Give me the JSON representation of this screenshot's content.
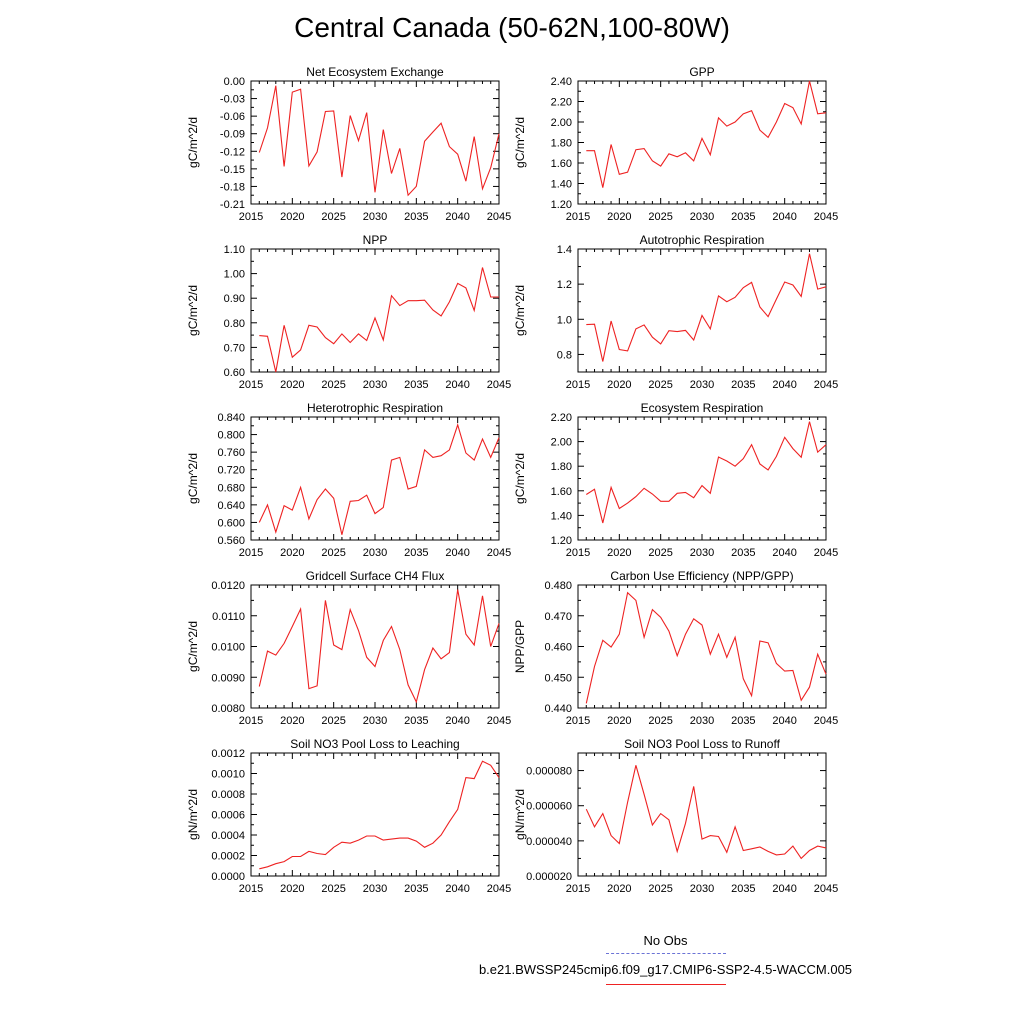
{
  "title": "Central Canada (50-62N,100-80W)",
  "legend": {
    "obs_label": "No Obs",
    "run_label": "b.e21.BWSSP245cmip6.f09_g17.CMIP6-SSP2-4.5-WACCM.005",
    "obs_color": "#6b73d6",
    "run_color": "#ee2222"
  },
  "chart_data": [
    {
      "type": "line",
      "title": "Net Ecosystem Exchange",
      "ylabel": "gC/m^2/d",
      "xlim": [
        2015,
        2045
      ],
      "ylim": [
        -0.21,
        0.0
      ],
      "xticks": [
        "2015",
        "2020",
        "2025",
        "2030",
        "2035",
        "2040",
        "2045"
      ],
      "yticks": [
        "0.00",
        "-0.03",
        "-0.06",
        "-0.09",
        "-0.12",
        "-0.15",
        "-0.18",
        "-0.21"
      ],
      "x": [
        2016,
        2017,
        2018,
        2019,
        2020,
        2021,
        2022,
        2023,
        2024,
        2025,
        2026,
        2027,
        2028,
        2029,
        2030,
        2031,
        2032,
        2033,
        2034,
        2035,
        2036,
        2037,
        2038,
        2039,
        2040,
        2041,
        2042,
        2043,
        2044,
        2045
      ],
      "series": [
        {
          "values": [
            -0.122,
            -0.08,
            -0.008,
            -0.146,
            -0.019,
            -0.014,
            -0.145,
            -0.121,
            -0.052,
            -0.051,
            -0.164,
            -0.059,
            -0.102,
            -0.054,
            -0.19,
            -0.083,
            -0.158,
            -0.115,
            -0.195,
            -0.18,
            -0.103,
            -0.087,
            -0.072,
            -0.112,
            -0.125,
            -0.171,
            -0.095,
            -0.184,
            -0.148,
            -0.09
          ]
        }
      ]
    },
    {
      "type": "line",
      "title": "GPP",
      "ylabel": "gC/m^2/d",
      "xlim": [
        2015,
        2045
      ],
      "ylim": [
        1.2,
        2.4
      ],
      "xticks": [
        "2015",
        "2020",
        "2025",
        "2030",
        "2035",
        "2040",
        "2045"
      ],
      "yticks": [
        "1.20",
        "1.40",
        "1.60",
        "1.80",
        "2.00",
        "2.20",
        "2.40"
      ],
      "x": [
        2016,
        2017,
        2018,
        2019,
        2020,
        2021,
        2022,
        2023,
        2024,
        2025,
        2026,
        2027,
        2028,
        2029,
        2030,
        2031,
        2032,
        2033,
        2034,
        2035,
        2036,
        2037,
        2038,
        2039,
        2040,
        2041,
        2042,
        2043,
        2044,
        2045
      ],
      "series": [
        {
          "values": [
            1.72,
            1.72,
            1.36,
            1.78,
            1.49,
            1.51,
            1.73,
            1.74,
            1.62,
            1.57,
            1.69,
            1.66,
            1.7,
            1.62,
            1.84,
            1.68,
            2.04,
            1.96,
            2.0,
            2.08,
            2.11,
            1.92,
            1.85,
            2.0,
            2.18,
            2.14,
            1.98,
            2.4,
            2.08,
            2.09
          ]
        }
      ]
    },
    {
      "type": "line",
      "title": "NPP",
      "ylabel": "gC/m^2/d",
      "xlim": [
        2015,
        2045
      ],
      "ylim": [
        0.6,
        1.1
      ],
      "xticks": [
        "2015",
        "2020",
        "2025",
        "2030",
        "2035",
        "2040",
        "2045"
      ],
      "yticks": [
        "0.60",
        "0.70",
        "0.80",
        "0.90",
        "1.00",
        "1.10"
      ],
      "x": [
        2016,
        2017,
        2018,
        2019,
        2020,
        2021,
        2022,
        2023,
        2024,
        2025,
        2026,
        2027,
        2028,
        2029,
        2030,
        2031,
        2032,
        2033,
        2034,
        2035,
        2036,
        2037,
        2038,
        2039,
        2040,
        2041,
        2042,
        2043,
        2044,
        2045
      ],
      "series": [
        {
          "values": [
            0.748,
            0.745,
            0.6,
            0.79,
            0.66,
            0.69,
            0.79,
            0.783,
            0.74,
            0.715,
            0.755,
            0.72,
            0.755,
            0.728,
            0.82,
            0.73,
            0.91,
            0.87,
            0.89,
            0.89,
            0.892,
            0.852,
            0.828,
            0.885,
            0.96,
            0.942,
            0.85,
            1.025,
            0.905,
            0.905
          ]
        }
      ]
    },
    {
      "type": "line",
      "title": "Autotrophic Respiration",
      "ylabel": "gC/m^2/d",
      "xlim": [
        2015,
        2045
      ],
      "ylim": [
        0.7,
        1.4
      ],
      "xticks": [
        "2015",
        "2020",
        "2025",
        "2030",
        "2035",
        "2040",
        "2045"
      ],
      "yticks": [
        "0.8",
        "1.0",
        "1.2",
        "1.4"
      ],
      "x": [
        2016,
        2017,
        2018,
        2019,
        2020,
        2021,
        2022,
        2023,
        2024,
        2025,
        2026,
        2027,
        2028,
        2029,
        2030,
        2031,
        2032,
        2033,
        2034,
        2035,
        2036,
        2037,
        2038,
        2039,
        2040,
        2041,
        2042,
        2043,
        2044,
        2045
      ],
      "series": [
        {
          "values": [
            0.97,
            0.972,
            0.76,
            0.99,
            0.828,
            0.82,
            0.945,
            0.968,
            0.898,
            0.86,
            0.935,
            0.93,
            0.937,
            0.882,
            1.022,
            0.945,
            1.133,
            1.1,
            1.125,
            1.18,
            1.21,
            1.07,
            1.015,
            1.115,
            1.212,
            1.195,
            1.13,
            1.373,
            1.172,
            1.185
          ]
        }
      ]
    },
    {
      "type": "line",
      "title": "Heterotrophic Respiration",
      "ylabel": "gC/m^2/d",
      "xlim": [
        2015,
        2045
      ],
      "ylim": [
        0.56,
        0.84
      ],
      "xticks": [
        "2015",
        "2020",
        "2025",
        "2030",
        "2035",
        "2040",
        "2045"
      ],
      "yticks": [
        "0.560",
        "0.600",
        "0.640",
        "0.680",
        "0.720",
        "0.760",
        "0.800",
        "0.840"
      ],
      "x": [
        2016,
        2017,
        2018,
        2019,
        2020,
        2021,
        2022,
        2023,
        2024,
        2025,
        2026,
        2027,
        2028,
        2029,
        2030,
        2031,
        2032,
        2033,
        2034,
        2035,
        2036,
        2037,
        2038,
        2039,
        2040,
        2041,
        2042,
        2043,
        2044,
        2045
      ],
      "series": [
        {
          "values": [
            0.6,
            0.64,
            0.578,
            0.638,
            0.628,
            0.68,
            0.608,
            0.652,
            0.676,
            0.655,
            0.572,
            0.648,
            0.65,
            0.662,
            0.62,
            0.634,
            0.742,
            0.748,
            0.676,
            0.682,
            0.765,
            0.748,
            0.752,
            0.765,
            0.822,
            0.758,
            0.742,
            0.79,
            0.748,
            0.793
          ]
        }
      ]
    },
    {
      "type": "line",
      "title": "Ecosystem Respiration",
      "ylabel": "gC/m^2/d",
      "xlim": [
        2015,
        2045
      ],
      "ylim": [
        1.2,
        2.2
      ],
      "xticks": [
        "2015",
        "2020",
        "2025",
        "2030",
        "2035",
        "2040",
        "2045"
      ],
      "yticks": [
        "1.20",
        "1.40",
        "1.60",
        "1.80",
        "2.00",
        "2.20"
      ],
      "x": [
        2016,
        2017,
        2018,
        2019,
        2020,
        2021,
        2022,
        2023,
        2024,
        2025,
        2026,
        2027,
        2028,
        2029,
        2030,
        2031,
        2032,
        2033,
        2034,
        2035,
        2036,
        2037,
        2038,
        2039,
        2040,
        2041,
        2042,
        2043,
        2044,
        2045
      ],
      "series": [
        {
          "values": [
            1.57,
            1.612,
            1.338,
            1.628,
            1.456,
            1.5,
            1.553,
            1.62,
            1.574,
            1.515,
            1.515,
            1.58,
            1.587,
            1.544,
            1.642,
            1.58,
            1.875,
            1.842,
            1.8,
            1.862,
            1.975,
            1.818,
            1.77,
            1.88,
            2.035,
            1.943,
            1.872,
            2.163,
            1.915,
            1.975
          ]
        }
      ]
    },
    {
      "type": "line",
      "title": "Gridcell Surface CH4 Flux",
      "ylabel": "gC/m^2/d",
      "xlim": [
        2015,
        2045
      ],
      "ylim": [
        0.008,
        0.012
      ],
      "xticks": [
        "2015",
        "2020",
        "2025",
        "2030",
        "2035",
        "2040",
        "2045"
      ],
      "yticks": [
        "0.0080",
        "0.0090",
        "0.0100",
        "0.0110",
        "0.0120"
      ],
      "x": [
        2016,
        2017,
        2018,
        2019,
        2020,
        2021,
        2022,
        2023,
        2024,
        2025,
        2026,
        2027,
        2028,
        2029,
        2030,
        2031,
        2032,
        2033,
        2034,
        2035,
        2036,
        2037,
        2038,
        2039,
        2040,
        2041,
        2042,
        2043,
        2044,
        2045
      ],
      "series": [
        {
          "values": [
            0.0087,
            0.00985,
            0.00972,
            0.0101,
            0.01065,
            0.01122,
            0.00863,
            0.00872,
            0.0115,
            0.01005,
            0.0099,
            0.0112,
            0.01052,
            0.00965,
            0.00935,
            0.0102,
            0.01065,
            0.0099,
            0.00875,
            0.0082,
            0.00925,
            0.00995,
            0.0096,
            0.0098,
            0.01185,
            0.0104,
            0.01005,
            0.01165,
            0.01,
            0.01075
          ]
        }
      ]
    },
    {
      "type": "line",
      "title": "Carbon Use Efficiency (NPP/GPP)",
      "ylabel": "NPP/GPP",
      "xlim": [
        2015,
        2045
      ],
      "ylim": [
        0.44,
        0.48
      ],
      "xticks": [
        "2015",
        "2020",
        "2025",
        "2030",
        "2035",
        "2040",
        "2045"
      ],
      "yticks": [
        "0.440",
        "0.450",
        "0.460",
        "0.470",
        "0.480"
      ],
      "x": [
        2016,
        2017,
        2018,
        2019,
        2020,
        2021,
        2022,
        2023,
        2024,
        2025,
        2026,
        2027,
        2028,
        2029,
        2030,
        2031,
        2032,
        2033,
        2034,
        2035,
        2036,
        2037,
        2038,
        2039,
        2040,
        2041,
        2042,
        2043,
        2044,
        2045
      ],
      "series": [
        {
          "values": [
            0.4415,
            0.4535,
            0.462,
            0.4598,
            0.464,
            0.4775,
            0.475,
            0.463,
            0.472,
            0.4695,
            0.465,
            0.457,
            0.464,
            0.469,
            0.467,
            0.4575,
            0.464,
            0.4565,
            0.463,
            0.4495,
            0.444,
            0.4618,
            0.4612,
            0.4545,
            0.452,
            0.4522,
            0.4425,
            0.4468,
            0.4575,
            0.451
          ]
        }
      ]
    },
    {
      "type": "line",
      "title": "Soil NO3 Pool Loss to Leaching",
      "ylabel": "gN/m^2/d",
      "xlim": [
        2015,
        2045
      ],
      "ylim": [
        0.0,
        0.0012
      ],
      "xticks": [
        "2015",
        "2020",
        "2025",
        "2030",
        "2035",
        "2040",
        "2045"
      ],
      "yticks": [
        "0.0000",
        "0.0002",
        "0.0004",
        "0.0006",
        "0.0008",
        "0.0010",
        "0.0012"
      ],
      "x": [
        2016,
        2017,
        2018,
        2019,
        2020,
        2021,
        2022,
        2023,
        2024,
        2025,
        2026,
        2027,
        2028,
        2029,
        2030,
        2031,
        2032,
        2033,
        2034,
        2035,
        2036,
        2037,
        2038,
        2039,
        2040,
        2041,
        2042,
        2043,
        2044,
        2045
      ],
      "series": [
        {
          "values": [
            7e-05,
            9e-05,
            0.00012,
            0.00014,
            0.00019,
            0.00019,
            0.00024,
            0.00022,
            0.00021,
            0.00028,
            0.00033,
            0.00032,
            0.00035,
            0.00039,
            0.00039,
            0.00035,
            0.00036,
            0.00037,
            0.00037,
            0.00034,
            0.00028,
            0.00032,
            0.0004,
            0.00053,
            0.00065,
            0.00096,
            0.00095,
            0.00112,
            0.00108,
            0.00096
          ]
        }
      ]
    },
    {
      "type": "line",
      "title": "Soil NO3 Pool Loss to Runoff",
      "ylabel": "gN/m^2/d",
      "xlim": [
        2015,
        2045
      ],
      "ylim": [
        2e-05,
        9e-05
      ],
      "xticks": [
        "2015",
        "2020",
        "2025",
        "2030",
        "2035",
        "2040",
        "2045"
      ],
      "yticks": [
        "0.000020",
        "0.000040",
        "0.000060",
        "0.000080"
      ],
      "x": [
        2016,
        2017,
        2018,
        2019,
        2020,
        2021,
        2022,
        2023,
        2024,
        2025,
        2026,
        2027,
        2028,
        2029,
        2030,
        2031,
        2032,
        2033,
        2034,
        2035,
        2036,
        2037,
        2038,
        2039,
        2040,
        2041,
        2042,
        2043,
        2044,
        2045
      ],
      "series": [
        {
          "values": [
            5.8e-05,
            4.8e-05,
            5.55e-05,
            4.3e-05,
            3.85e-05,
            6.2e-05,
            8.3e-05,
            6.65e-05,
            4.9e-05,
            5.55e-05,
            5.2e-05,
            3.4e-05,
            5e-05,
            7.1e-05,
            4.1e-05,
            4.3e-05,
            4.25e-05,
            3.35e-05,
            4.8e-05,
            3.45e-05,
            3.55e-05,
            3.65e-05,
            3.4e-05,
            3.2e-05,
            3.25e-05,
            3.7e-05,
            3e-05,
            3.45e-05,
            3.7e-05,
            3.6e-05
          ]
        }
      ]
    }
  ]
}
